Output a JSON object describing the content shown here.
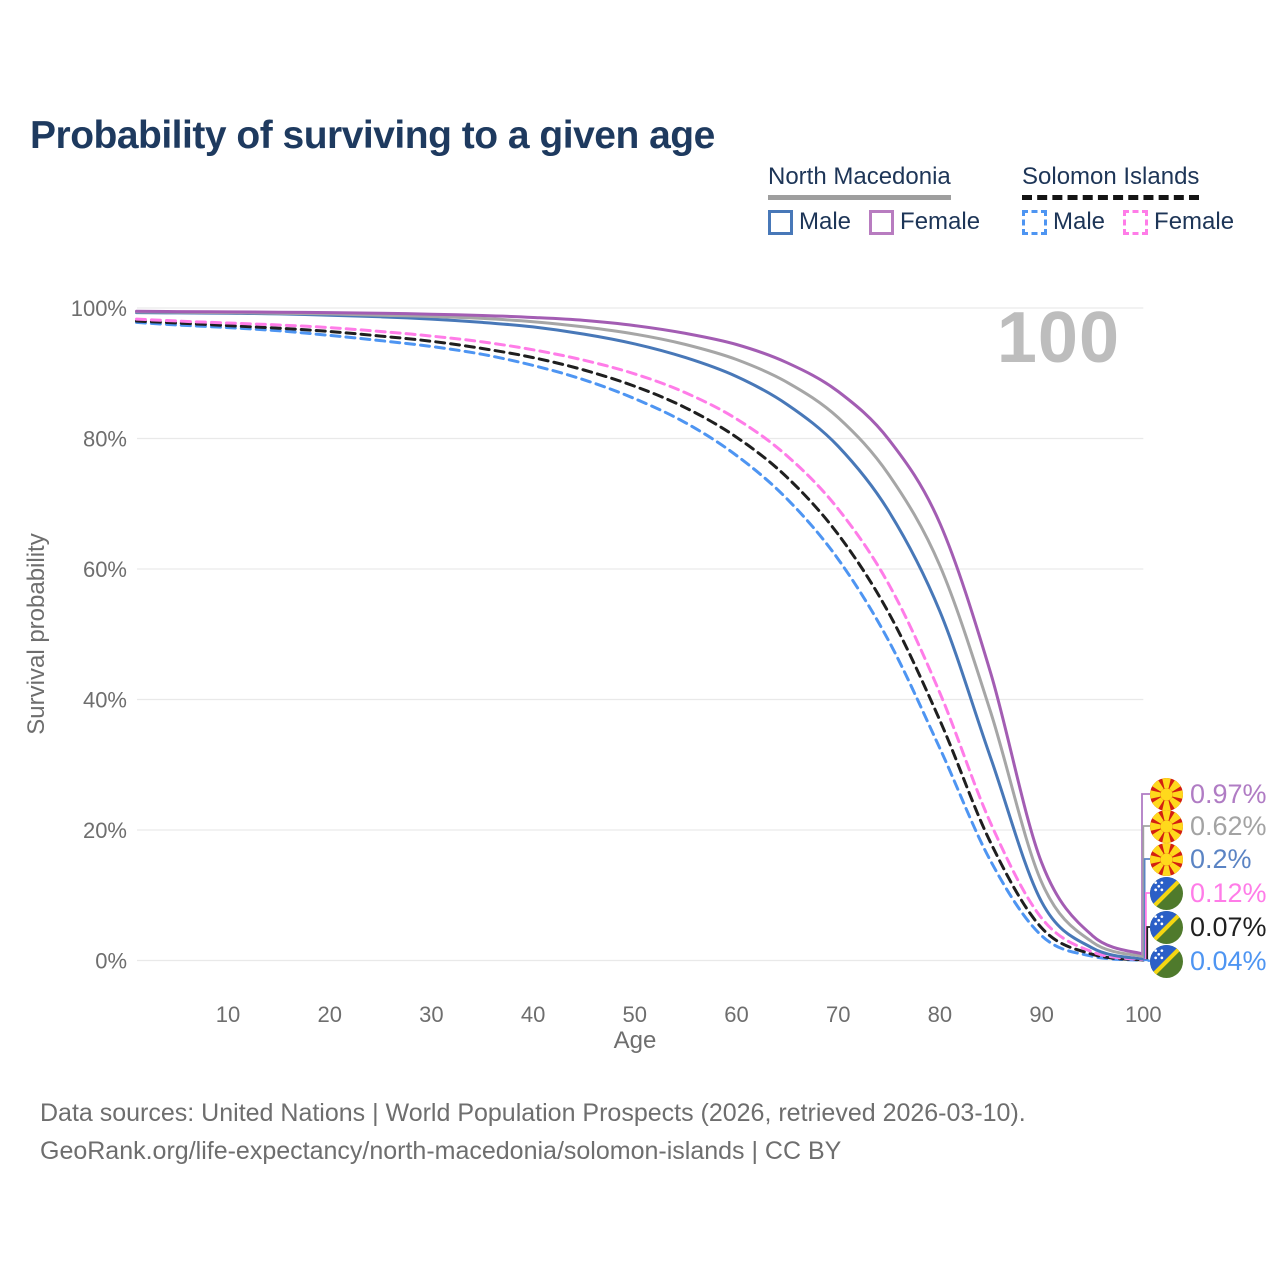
{
  "title": "Probability of surviving to a given age",
  "watermark": "100",
  "legend": {
    "groups": [
      {
        "title": "North Macedonia",
        "line_style": "solid",
        "items": [
          {
            "label": "Male",
            "color": "#4878b8",
            "dashed": false
          },
          {
            "label": "Female",
            "color": "#b87cc0",
            "dashed": false
          }
        ]
      },
      {
        "title": "Solomon Islands",
        "line_style": "dashed",
        "items": [
          {
            "label": "Male",
            "color": "#4e95f2",
            "dashed": true
          },
          {
            "label": "Female",
            "color": "#ff7ce8",
            "dashed": true
          }
        ]
      }
    ]
  },
  "end_labels": [
    {
      "country": "North Macedonia",
      "flag": "north-macedonia-flag",
      "value": "0.97%",
      "color": "#b07cc4"
    },
    {
      "country": "North Macedonia",
      "flag": "north-macedonia-flag",
      "value": "0.62%",
      "color": "#a3a3a3"
    },
    {
      "country": "North Macedonia",
      "flag": "north-macedonia-flag",
      "value": "0.2%",
      "color": "#5b84c4"
    },
    {
      "country": "Solomon Islands",
      "flag": "solomon-islands-flag",
      "value": "0.12%",
      "color": "#ff7ce8"
    },
    {
      "country": "Solomon Islands",
      "flag": "solomon-islands-flag",
      "value": "0.07%",
      "color": "#1f1f1f"
    },
    {
      "country": "Solomon Islands",
      "flag": "solomon-islands-flag",
      "value": "0.04%",
      "color": "#4e95f2"
    }
  ],
  "footer": {
    "line1": "Data sources: United Nations | World Population Prospects (2026, retrieved 2026-03-10).",
    "line2": "GeoRank.org/life-expectancy/north-macedonia/solomon-islands | CC BY"
  },
  "chart_data": {
    "type": "line",
    "title": "Probability of surviving to a given age",
    "xlabel": "Age",
    "ylabel": "Survival probability",
    "xlim": [
      0,
      100
    ],
    "ylim": [
      0,
      100
    ],
    "grid": "horizontal",
    "legend_position": "top-right",
    "x_ticks": [
      10,
      20,
      30,
      40,
      50,
      60,
      70,
      80,
      90,
      100
    ],
    "y_ticks": [
      "0%",
      "20%",
      "40%",
      "60%",
      "80%",
      "100%"
    ],
    "x": [
      1,
      5,
      10,
      15,
      20,
      25,
      30,
      35,
      40,
      45,
      50,
      55,
      60,
      65,
      70,
      75,
      80,
      85,
      90,
      95,
      100
    ],
    "series": [
      {
        "name": "Solomon Islands Male",
        "country": "Solomon Islands",
        "sex": "Male",
        "color": "#4e95f2",
        "dashed": true,
        "end_label": "0.04%",
        "values": [
          97.8,
          97.4,
          97.0,
          96.5,
          95.8,
          95.0,
          94.1,
          92.9,
          91.2,
          89.0,
          86.1,
          82.4,
          77.4,
          70.7,
          61.5,
          48.9,
          32.5,
          15.2,
          3.8,
          0.65,
          0.04
        ]
      },
      {
        "name": "Solomon Islands Both sexes",
        "country": "Solomon Islands",
        "sex": "Both",
        "color": "#1f1f1f",
        "dashed": true,
        "end_label": "0.07%",
        "values": [
          98.0,
          97.7,
          97.3,
          96.9,
          96.4,
          95.7,
          94.9,
          93.8,
          92.4,
          90.5,
          88.0,
          84.7,
          80.2,
          74.0,
          65.3,
          53.2,
          36.8,
          18.0,
          5.0,
          0.95,
          0.07
        ]
      },
      {
        "name": "Solomon Islands Female",
        "country": "Solomon Islands",
        "sex": "Female",
        "color": "#ff7ce8",
        "dashed": true,
        "end_label": "0.12%",
        "values": [
          98.3,
          98.0,
          97.7,
          97.4,
          97.0,
          96.4,
          95.7,
          94.8,
          93.6,
          92.0,
          89.9,
          87.0,
          83.0,
          77.3,
          69.2,
          57.6,
          41.0,
          21.0,
          6.5,
          1.3,
          0.12
        ]
      },
      {
        "name": "North Macedonia Male",
        "country": "North Macedonia",
        "sex": "Male",
        "color": "#4878b8",
        "dashed": false,
        "end_label": "0.2%",
        "values": [
          99.3,
          99.25,
          99.2,
          99.1,
          98.9,
          98.65,
          98.3,
          97.8,
          97.1,
          96.0,
          94.5,
          92.4,
          89.5,
          85.2,
          78.8,
          68.8,
          53.5,
          31.0,
          9.0,
          1.9,
          0.2
        ]
      },
      {
        "name": "North Macedonia Both sexes",
        "country": "North Macedonia",
        "sex": "Both",
        "color": "#a6a6a6",
        "dashed": false,
        "end_label": "0.62%",
        "values": [
          99.4,
          99.35,
          99.3,
          99.2,
          99.1,
          98.9,
          98.7,
          98.4,
          97.9,
          97.1,
          96.0,
          94.4,
          92.1,
          88.6,
          83.2,
          74.4,
          60.5,
          38.0,
          12.0,
          2.8,
          0.62
        ]
      },
      {
        "name": "North Macedonia Female",
        "country": "North Macedonia",
        "sex": "Female",
        "color": "#a35db3",
        "dashed": false,
        "end_label": "0.97%",
        "values": [
          99.5,
          99.45,
          99.4,
          99.35,
          99.3,
          99.2,
          99.05,
          98.85,
          98.55,
          98.1,
          97.3,
          96.1,
          94.4,
          91.6,
          87.2,
          79.8,
          67.0,
          44.0,
          15.0,
          3.8,
          0.97
        ]
      }
    ]
  }
}
